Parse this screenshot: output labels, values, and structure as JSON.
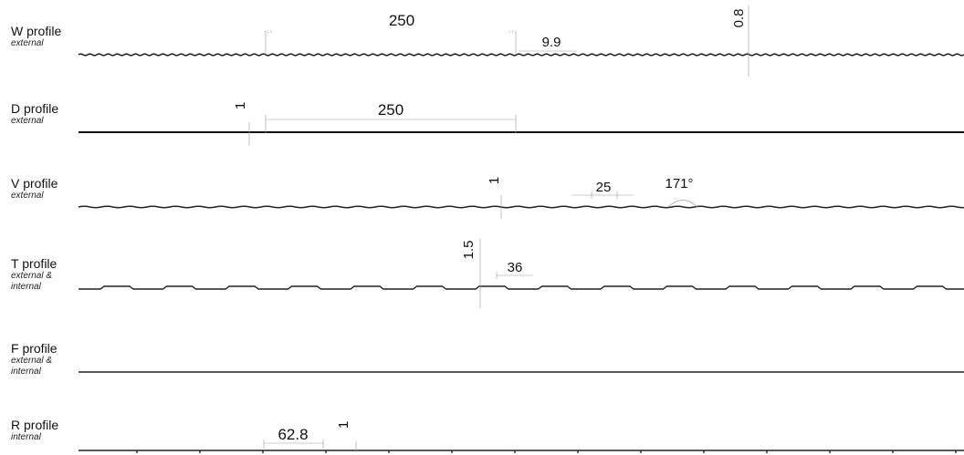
{
  "profiles": [
    {
      "name": "W profile",
      "sub": [
        "external"
      ],
      "dims": [
        "250",
        "9.9",
        "0.8"
      ]
    },
    {
      "name": "D profile",
      "sub": [
        "external"
      ],
      "dims": [
        "1",
        "250"
      ]
    },
    {
      "name": "V profile",
      "sub": [
        "external"
      ],
      "dims": [
        "1",
        "25",
        "171°"
      ]
    },
    {
      "name": "T profile",
      "sub": [
        "external &",
        "internal"
      ],
      "dims": [
        "1.5",
        "36"
      ]
    },
    {
      "name": "F profile",
      "sub": [
        "external &",
        "internal"
      ],
      "dims": []
    },
    {
      "name": "R profile",
      "sub": [
        "internal"
      ],
      "dims": [
        "62.8",
        "1"
      ]
    }
  ]
}
